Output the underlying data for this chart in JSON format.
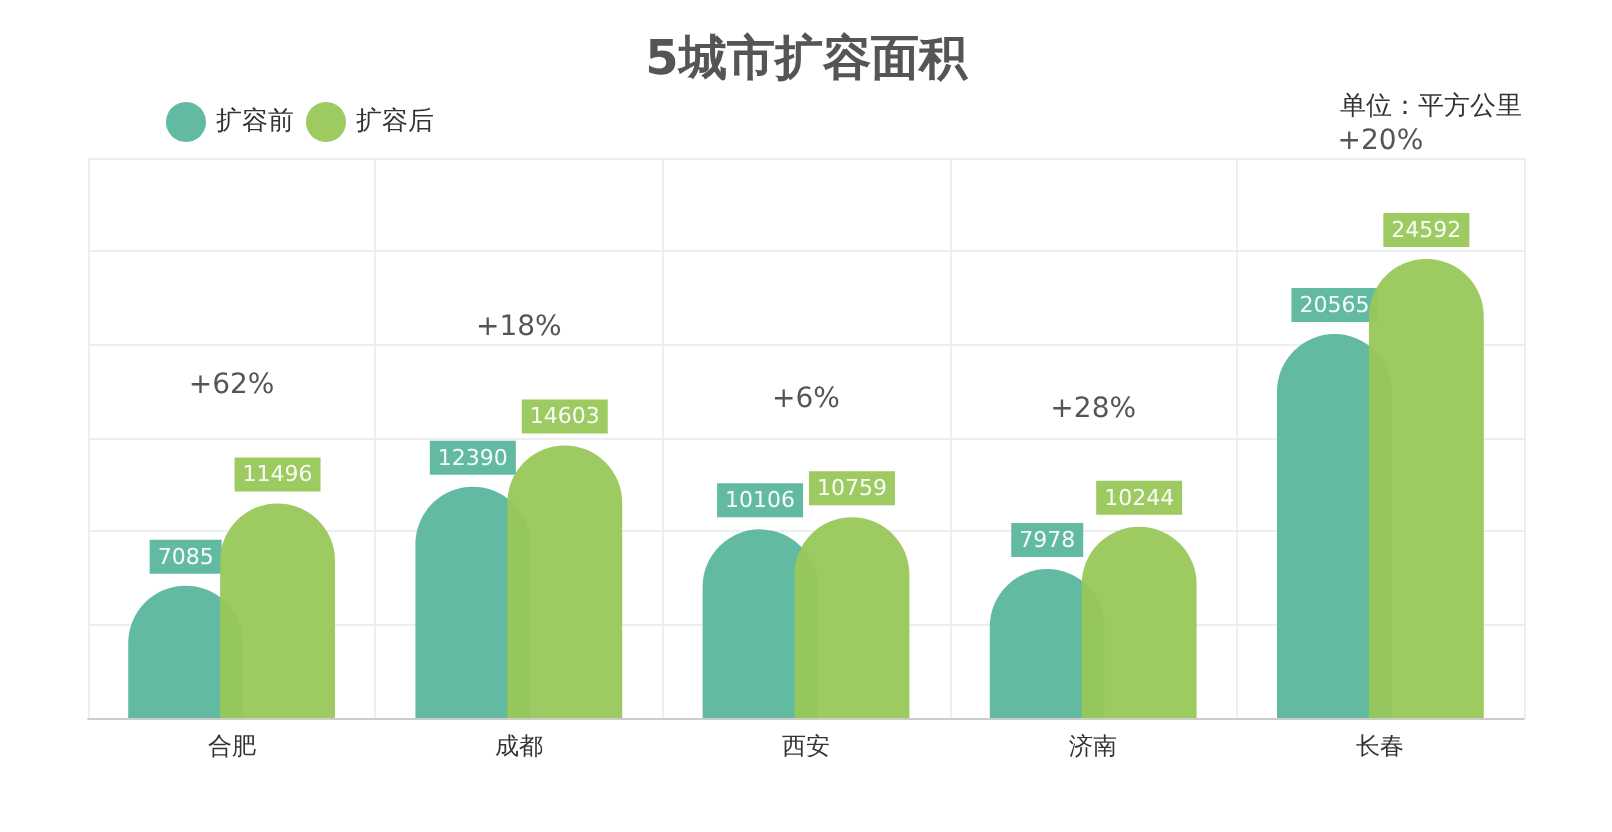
{
  "chart_data": {
    "type": "bar",
    "title": "5城市扩容面积",
    "categories": [
      "合肥",
      "成都",
      "西安",
      "济南",
      "长春"
    ],
    "series": [
      {
        "name": "扩容前",
        "color": "#5bb69d",
        "values": [
          7085,
          12390,
          10106,
          7978,
          20565
        ]
      },
      {
        "name": "扩容后",
        "color": "#99c75a",
        "values": [
          11496,
          14603,
          10759,
          10244,
          24592
        ]
      }
    ],
    "ylim": [
      0,
      30000
    ],
    "yticks": [
      {
        "value": 0,
        "label": null
      },
      {
        "value": 5000,
        "label": null
      },
      {
        "value": 10000,
        "label": null
      },
      {
        "value": 15000,
        "label": null
      },
      {
        "value": 20000,
        "label": null
      },
      {
        "value": 25000,
        "label": null
      },
      {
        "value": 30000,
        "label": null
      }
    ],
    "tick_labels": "x",
    "grid": true,
    "legend": "top left",
    "data_labels": true,
    "annotations": [
      "单位：平方公里",
      "+62%",
      "+18%",
      "+6%",
      "+28%",
      "+20%"
    ]
  }
}
